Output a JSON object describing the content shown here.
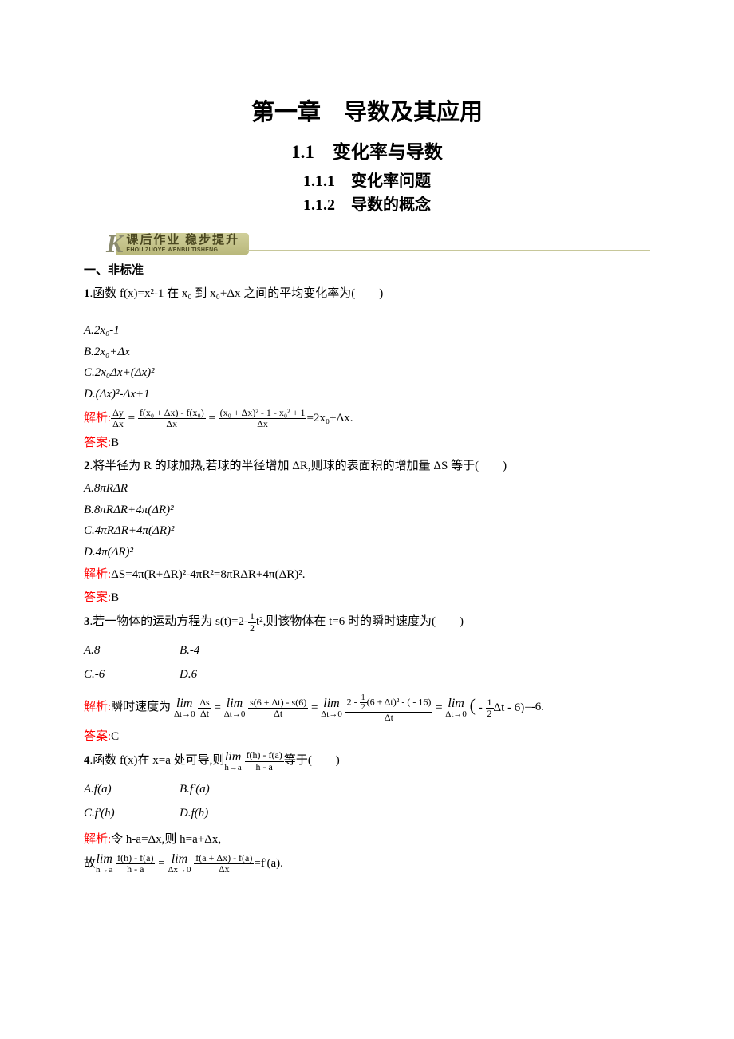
{
  "colors": {
    "text": "#000000",
    "bg": "#ffffff",
    "red": "#ff0000",
    "badge_bar_top": "#d0cf9b",
    "badge_bar_bottom": "#b9b87b",
    "badge_text": "#4a4720",
    "badge_tail": "#c7c79a",
    "badge_k": "#8a8a6e"
  },
  "fonts": {
    "body_family": "SimSun",
    "math_family": "Times New Roman",
    "body_size_pt": 15,
    "chapter_size_pt": 29,
    "section_size_pt": 23,
    "subsection_size_pt": 20
  },
  "titles": {
    "chapter": "第一章　导数及其应用",
    "section": "1.1　变化率与导数",
    "sub1": "1.1.1　变化率问题",
    "sub2": "1.1.2　导数的概念"
  },
  "badge": {
    "k": "K",
    "cn": "课后作业 稳步提升",
    "pinyin": "EHOU ZUOYE WENBU TISHENG"
  },
  "heading": "一、非标准",
  "labels": {
    "analysis": "解析:",
    "answer": "答案:"
  },
  "q1": {
    "num": "1",
    "stem": ".函数 f(x)=x²-1 在 x₀ 到 x₀+Δx 之间的平均变化率为(　　)",
    "opts": {
      "A": "A.2x₀-1",
      "B": "B.2x₀+Δx",
      "C": "C.2x₀Δx+(Δx)²",
      "D": "D.(Δx)²-Δx+1"
    },
    "analysis": {
      "frac1_num": "Δy",
      "frac1_den": "Δx",
      "eq1": " = ",
      "frac2_num": "f(x₀ + Δx) - f(x₀)",
      "frac2_den": "Δx",
      "eq2": " = ",
      "frac3_num": "(x₀ + Δx)² - 1 - x₀² + 1",
      "frac3_den": "Δx",
      "tail": "=2x₀+Δx."
    },
    "answer_val": "B"
  },
  "q2": {
    "num": "2",
    "stem": ".将半径为 R 的球加热,若球的半径增加 ΔR,则球的表面积的增加量 ΔS 等于(　　)",
    "opts": {
      "A": "A.8πRΔR",
      "B": "B.8πRΔR+4π(ΔR)²",
      "C": "C.4πRΔR+4π(ΔR)²",
      "D": "D.4π(ΔR)²"
    },
    "analysis_text": "ΔS=4π(R+ΔR)²-4πR²=8πRΔR+4π(ΔR)².",
    "answer_val": "B"
  },
  "q3": {
    "num": "3",
    "stem_before": ".若一物体的运动方程为 s(t)=2-",
    "stem_frac_num": "1",
    "stem_frac_den": "2",
    "stem_after": "t²,则该物体在 t=6 时的瞬时速度为(　　)",
    "opts": {
      "A": "A.8",
      "B": "B.-4",
      "C": "C.-6",
      "D": "D.6"
    },
    "analysis": {
      "prefix": "瞬时速度为 ",
      "lim_bot": "Δt→0",
      "lim_top": "lim",
      "f1_num": "Δs",
      "f1_den": "Δt",
      "eq": " = ",
      "f2_num": "s(6 + Δt) - s(6)",
      "f2_den": "Δt",
      "f3_num_a": "2 - ",
      "f3_num_half_num": "1",
      "f3_num_half_den": "2",
      "f3_num_b": "(6 + Δt)² - ( - 16)",
      "f3_den": "Δt",
      "paren_open": "( - ",
      "half2_num": "1",
      "half2_den": "2",
      "paren_mid": "Δt - 6)",
      "tail": "=-6."
    },
    "answer_val": "C"
  },
  "q4": {
    "num": "4",
    "stem_before": ".函数 f(x)在 x=a 处可导,则",
    "lim_top": "lim",
    "lim_bot": "h→a",
    "stem_frac_num": "f(h) - f(a)",
    "stem_frac_den": "h - a",
    "stem_after": "等于(　　)",
    "opts": {
      "A": "A.f(a)",
      "B": "B.f'(a)",
      "C": "C.f'(h)",
      "D": "D.f(h)"
    },
    "analysis": {
      "line1": "令 h-a=Δx,则 h=a+Δx,",
      "line2_prefix": " 故",
      "lim1_bot": "h→a",
      "f1_num": "f(h) - f(a)",
      "f1_den": "h - a",
      "eq": " = ",
      "lim2_bot": "Δx→0",
      "f2_num": "f(a + Δx) - f(a)",
      "f2_den": "Δx",
      "tail": "=f'(a)."
    }
  }
}
